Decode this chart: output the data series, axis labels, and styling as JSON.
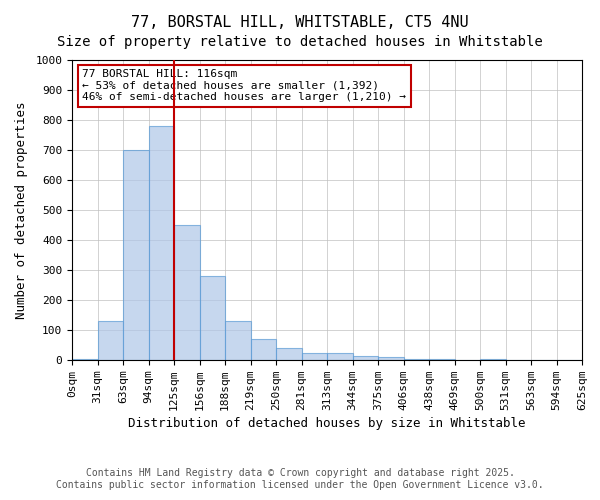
{
  "title_line1": "77, BORSTAL HILL, WHITSTABLE, CT5 4NU",
  "title_line2": "Size of property relative to detached houses in Whitstable",
  "xlabel": "Distribution of detached houses by size in Whitstable",
  "ylabel": "Number of detached properties",
  "bin_labels": [
    "0sqm",
    "31sqm",
    "63sqm",
    "94sqm",
    "125sqm",
    "156sqm",
    "188sqm",
    "219sqm",
    "250sqm",
    "281sqm",
    "313sqm",
    "344sqm",
    "375sqm",
    "406sqm",
    "438sqm",
    "469sqm",
    "500sqm",
    "531sqm",
    "563sqm",
    "594sqm",
    "625sqm"
  ],
  "bar_values": [
    5,
    130,
    700,
    780,
    450,
    280,
    130,
    70,
    40,
    25,
    25,
    15,
    10,
    5,
    5,
    0,
    5,
    0,
    0,
    0
  ],
  "bar_color": "#aec6e8",
  "bar_edgecolor": "#5b9bd5",
  "bar_alpha": 0.7,
  "vline_x": 4,
  "vline_color": "#c00000",
  "annotation_title": "77 BORSTAL HILL: 116sqm",
  "annotation_line2": "← 53% of detached houses are smaller (1,392)",
  "annotation_line3": "46% of semi-detached houses are larger (1,210) →",
  "annotation_box_color": "#c00000",
  "ylim": [
    0,
    1000
  ],
  "yticks": [
    0,
    100,
    200,
    300,
    400,
    500,
    600,
    700,
    800,
    900,
    1000
  ],
  "grid_color": "#c0c0c0",
  "background_color": "#ffffff",
  "footer_line1": "Contains HM Land Registry data © Crown copyright and database right 2025.",
  "footer_line2": "Contains public sector information licensed under the Open Government Licence v3.0.",
  "title_fontsize": 11,
  "subtitle_fontsize": 10,
  "axis_label_fontsize": 9,
  "tick_fontsize": 8,
  "annotation_fontsize": 8,
  "footer_fontsize": 7
}
